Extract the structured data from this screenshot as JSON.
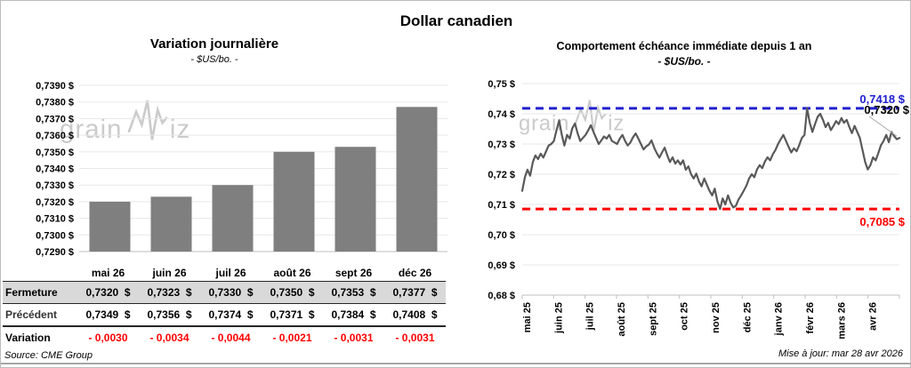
{
  "page": {
    "title": "Dollar canadien",
    "source": "Source: CME Group",
    "updated": "Mise à jour: mar 28 avr 2026",
    "watermark_pre": "grain",
    "watermark_post": "iz"
  },
  "left": {
    "title": "Variation journalière",
    "subtitle": "- $US/bo. -",
    "table": {
      "columns": [
        "mai 26",
        "juin 26",
        "juil 26",
        "août 26",
        "sept 26",
        "déc 26"
      ],
      "rows": [
        {
          "label": "Fermeture",
          "style": "shaded",
          "values": [
            "0,7320  $",
            "0,7323  $",
            "0,7330  $",
            "0,7350  $",
            "0,7353  $",
            "0,7377  $"
          ]
        },
        {
          "label": "Précédent",
          "style": "plain",
          "values": [
            "0,7349  $",
            "0,7356  $",
            "0,7374  $",
            "0,7371  $",
            "0,7384  $",
            "0,7408  $"
          ]
        },
        {
          "label": "Variation",
          "style": "negative",
          "values": [
            "- 0,0030",
            "- 0,0034",
            "- 0,0044",
            "- 0,0021",
            "- 0,0031",
            "- 0,0031"
          ]
        }
      ]
    }
  },
  "right": {
    "title": "Comportement échéance immédiate depuis 1 an",
    "subtitle": "- $US/bo. -"
  },
  "chart_data": [
    {
      "type": "bar",
      "title": "Variation journalière",
      "subtitle": "- $US/bo. -",
      "categories": [
        "mai 26",
        "juin 26",
        "juil 26",
        "août 26",
        "sept 26",
        "déc 26"
      ],
      "values": [
        0.732,
        0.7323,
        0.733,
        0.735,
        0.7353,
        0.7377
      ],
      "ylim": [
        0.729,
        0.739
      ],
      "ytick_step": 0.001,
      "ytick_labels": [
        "0,7390 $",
        "0,7380 $",
        "0,7370 $",
        "0,7360 $",
        "0,7350 $",
        "0,7340 $",
        "0,7330 $",
        "0,7320 $",
        "0,7310 $",
        "0,7300 $",
        "0,7290 $"
      ],
      "grid": true,
      "legend": "none"
    },
    {
      "type": "line",
      "title": "Comportement échéance immédiate depuis 1 an",
      "subtitle": "- $US/bo. -",
      "x_labels": [
        "mai 25",
        "juin 25",
        "juil 25",
        "août 25",
        "sept 25",
        "oct 25",
        "nov 25",
        "déc 25",
        "janv 26",
        "févr 26",
        "mars 26",
        "avr 26"
      ],
      "ylim": [
        0.68,
        0.75
      ],
      "ytick_step": 0.01,
      "ytick_labels": [
        "0,75 $",
        "0,74 $",
        "0,73 $",
        "0,72 $",
        "0,71 $",
        "0,70 $",
        "0,69 $",
        "0,68 $"
      ],
      "max_line": {
        "value": 0.7418,
        "label": "0,7418 $"
      },
      "min_line": {
        "value": 0.7085,
        "label": "0,7085 $"
      },
      "last_point": {
        "value": 0.732,
        "label": "0,7320 $"
      },
      "grid": true,
      "legend": "none",
      "values": [
        0.7145,
        0.719,
        0.7215,
        0.7195,
        0.724,
        0.7262,
        0.725,
        0.7268,
        0.7255,
        0.7275,
        0.7295,
        0.73,
        0.731,
        0.7345,
        0.7378,
        0.733,
        0.7295,
        0.733,
        0.7318,
        0.7352,
        0.7368,
        0.7335,
        0.731,
        0.732,
        0.733,
        0.7345,
        0.7362,
        0.734,
        0.732,
        0.73,
        0.7312,
        0.7325,
        0.7318,
        0.733,
        0.731,
        0.7305,
        0.73,
        0.7318,
        0.733,
        0.731,
        0.7295,
        0.7305,
        0.7322,
        0.7335,
        0.7318,
        0.73,
        0.7282,
        0.7292,
        0.7298,
        0.7312,
        0.7288,
        0.727,
        0.7255,
        0.7272,
        0.7288,
        0.7262,
        0.724,
        0.7256,
        0.7235,
        0.7246,
        0.7232,
        0.7246,
        0.7215,
        0.7226,
        0.72,
        0.7186,
        0.7202,
        0.7176,
        0.716,
        0.7186,
        0.7165,
        0.7145,
        0.713,
        0.7152,
        0.711,
        0.7085,
        0.712,
        0.71,
        0.713,
        0.7106,
        0.709,
        0.7096,
        0.7116,
        0.713,
        0.7146,
        0.7162,
        0.7186,
        0.72,
        0.719,
        0.7216,
        0.723,
        0.722,
        0.7242,
        0.7256,
        0.7246,
        0.7266,
        0.728,
        0.73,
        0.7316,
        0.733,
        0.731,
        0.729,
        0.7272,
        0.7286,
        0.7276,
        0.7296,
        0.732,
        0.733,
        0.7418,
        0.737,
        0.734,
        0.7366,
        0.739,
        0.74,
        0.738,
        0.7356,
        0.737,
        0.7346,
        0.736,
        0.7376,
        0.7366,
        0.7386,
        0.737,
        0.738,
        0.7356,
        0.7336,
        0.736,
        0.734,
        0.732,
        0.728,
        0.724,
        0.7216,
        0.723,
        0.7256,
        0.7246,
        0.727,
        0.7296,
        0.731,
        0.733,
        0.7306,
        0.734,
        0.7326,
        0.7316,
        0.732
      ]
    }
  ],
  "colors": {
    "bar": "#7f7f7f",
    "line": "#595959",
    "max_line": "#2121ce",
    "min_line": "#ff0000",
    "last_label": "#000000",
    "negative": "#ff0000",
    "shaded_row": "#d9d9d9",
    "grid": "#e7e7e7",
    "axis": "#bfbfbf",
    "watermark": "#cbcbcb"
  }
}
